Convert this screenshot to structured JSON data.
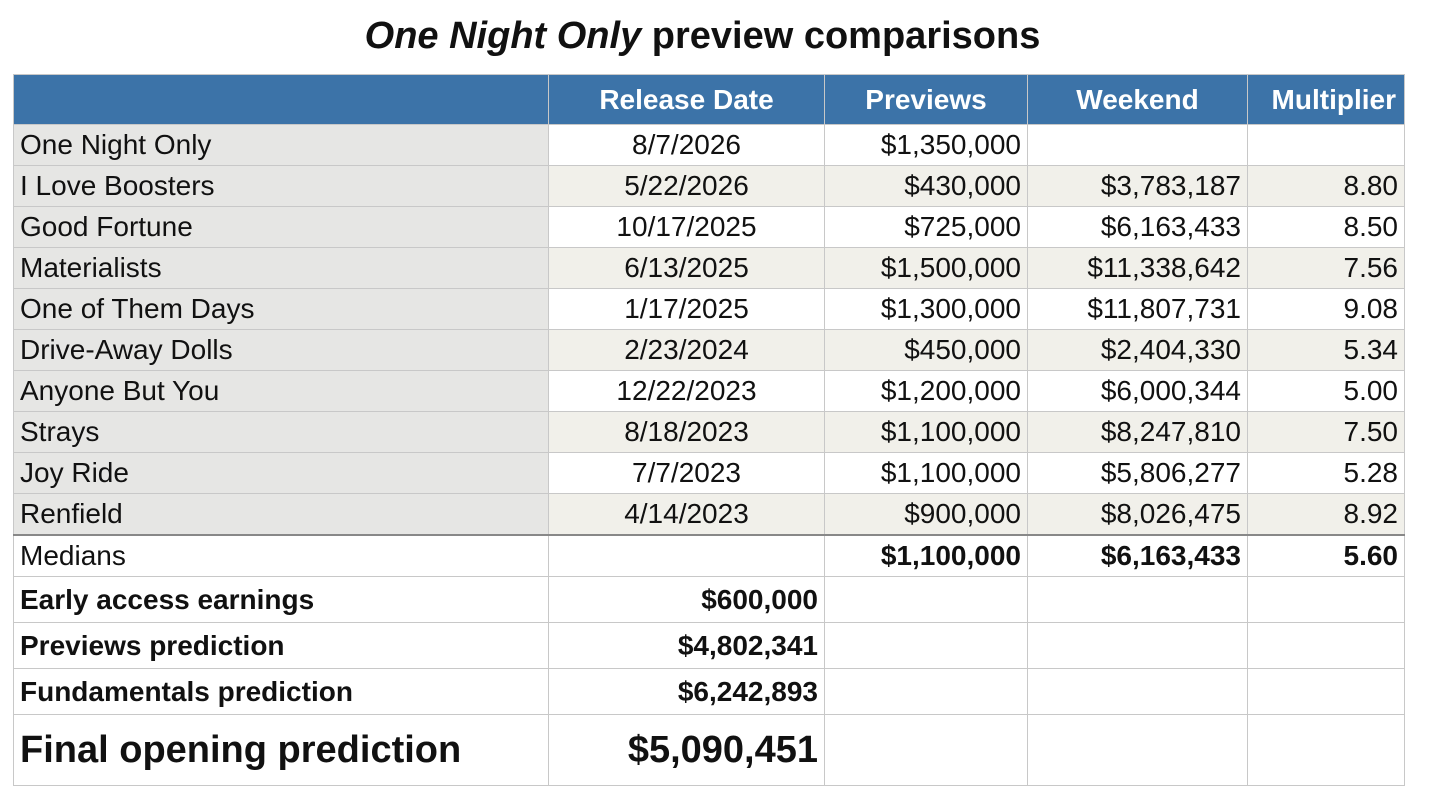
{
  "title": {
    "italic": "One Night Only",
    "rest": " preview comparisons"
  },
  "columns": [
    "",
    "Release Date",
    "Previews",
    "Weekend",
    "Multiplier"
  ],
  "films": [
    {
      "name": "One Night Only",
      "release_date": "8/7/2026",
      "previews": "$1,350,000",
      "weekend": "",
      "multiplier": ""
    },
    {
      "name": "I Love Boosters",
      "release_date": "5/22/2026",
      "previews": "$430,000",
      "weekend": "$3,783,187",
      "multiplier": "8.80"
    },
    {
      "name": "Good Fortune",
      "release_date": "10/17/2025",
      "previews": "$725,000",
      "weekend": "$6,163,433",
      "multiplier": "8.50"
    },
    {
      "name": "Materialists",
      "release_date": "6/13/2025",
      "previews": "$1,500,000",
      "weekend": "$11,338,642",
      "multiplier": "7.56"
    },
    {
      "name": "One of Them Days",
      "release_date": "1/17/2025",
      "previews": "$1,300,000",
      "weekend": "$11,807,731",
      "multiplier": "9.08"
    },
    {
      "name": "Drive-Away Dolls",
      "release_date": "2/23/2024",
      "previews": "$450,000",
      "weekend": "$2,404,330",
      "multiplier": "5.34"
    },
    {
      "name": "Anyone But You",
      "release_date": "12/22/2023",
      "previews": "$1,200,000",
      "weekend": "$6,000,344",
      "multiplier": "5.00"
    },
    {
      "name": "Strays",
      "release_date": "8/18/2023",
      "previews": "$1,100,000",
      "weekend": "$8,247,810",
      "multiplier": "7.50"
    },
    {
      "name": "Joy Ride",
      "release_date": "7/7/2023",
      "previews": "$1,100,000",
      "weekend": "$5,806,277",
      "multiplier": "5.28"
    },
    {
      "name": "Renfield",
      "release_date": "4/14/2023",
      "previews": "$900,000",
      "weekend": "$8,026,475",
      "multiplier": "8.92"
    }
  ],
  "medians": {
    "label": "Medians",
    "previews": "$1,100,000",
    "weekend": "$6,163,433",
    "multiplier": "5.60"
  },
  "predictions": [
    {
      "label": "Early access earnings",
      "value": "$600,000"
    },
    {
      "label": "Previews prediction",
      "value": "$4,802,341"
    },
    {
      "label": "Fundamentals prediction",
      "value": "$6,242,893"
    }
  ],
  "final": {
    "label": "Final opening prediction",
    "value": "$5,090,451"
  }
}
